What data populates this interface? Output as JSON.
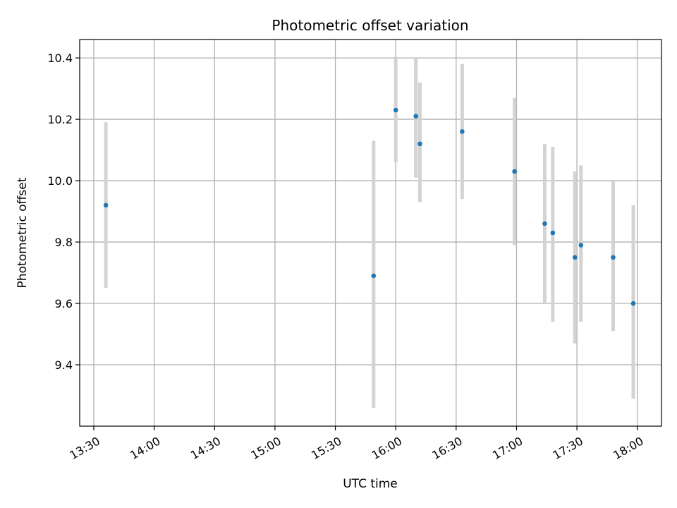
{
  "chart_data": {
    "type": "scatter",
    "title": "Photometric offset variation",
    "xlabel": "UTC time",
    "ylabel": "Photometric offset",
    "x_axis_kind": "time",
    "xlim": [
      "13:23",
      "18:12"
    ],
    "ylim": [
      9.2,
      10.46
    ],
    "x_ticks": [
      "13:30",
      "14:00",
      "14:30",
      "15:00",
      "15:30",
      "16:00",
      "16:30",
      "17:00",
      "17:30",
      "18:00"
    ],
    "y_ticks": [
      9.4,
      9.6,
      9.8,
      10.0,
      10.2,
      10.4
    ],
    "grid": true,
    "marker_color": "#1f77b4",
    "errorbar_color": "#d3d3d3",
    "points": [
      {
        "x": "13:36",
        "y": 9.92,
        "low": 9.65,
        "high": 10.19
      },
      {
        "x": "15:49",
        "y": 9.69,
        "low": 9.26,
        "high": 10.13
      },
      {
        "x": "16:00",
        "y": 10.23,
        "low": 10.06,
        "high": 10.4
      },
      {
        "x": "16:10",
        "y": 10.21,
        "low": 10.01,
        "high": 10.4
      },
      {
        "x": "16:12",
        "y": 10.12,
        "low": 9.93,
        "high": 10.32
      },
      {
        "x": "16:33",
        "y": 10.16,
        "low": 9.94,
        "high": 10.38
      },
      {
        "x": "16:59",
        "y": 10.03,
        "low": 9.79,
        "high": 10.27
      },
      {
        "x": "17:14",
        "y": 9.86,
        "low": 9.6,
        "high": 10.12
      },
      {
        "x": "17:18",
        "y": 9.83,
        "low": 9.54,
        "high": 10.11
      },
      {
        "x": "17:29",
        "y": 9.75,
        "low": 9.47,
        "high": 10.03
      },
      {
        "x": "17:32",
        "y": 9.79,
        "low": 9.54,
        "high": 10.05
      },
      {
        "x": "17:48",
        "y": 9.75,
        "low": 9.51,
        "high": 10.0
      },
      {
        "x": "17:58",
        "y": 9.6,
        "low": 9.29,
        "high": 9.92
      }
    ]
  }
}
